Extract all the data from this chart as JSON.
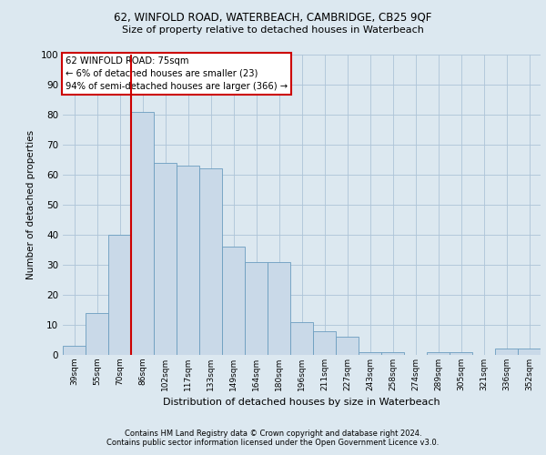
{
  "title1": "62, WINFOLD ROAD, WATERBEACH, CAMBRIDGE, CB25 9QF",
  "title2": "Size of property relative to detached houses in Waterbeach",
  "xlabel": "Distribution of detached houses by size in Waterbeach",
  "ylabel": "Number of detached properties",
  "categories": [
    "39sqm",
    "55sqm",
    "70sqm",
    "86sqm",
    "102sqm",
    "117sqm",
    "133sqm",
    "149sqm",
    "164sqm",
    "180sqm",
    "196sqm",
    "211sqm",
    "227sqm",
    "243sqm",
    "258sqm",
    "274sqm",
    "289sqm",
    "305sqm",
    "321sqm",
    "336sqm",
    "352sqm"
  ],
  "values": [
    3,
    14,
    40,
    81,
    64,
    63,
    62,
    36,
    31,
    31,
    11,
    8,
    6,
    1,
    1,
    0,
    1,
    1,
    0,
    2,
    2
  ],
  "bar_color": "#c9d9e8",
  "bar_edge_color": "#6a9dbf",
  "grid_color": "#adc4d8",
  "background_color": "#dce8f0",
  "fig_background_color": "#dce8f0",
  "vline_x": 2.5,
  "vline_color": "#cc0000",
  "annotation_box": {
    "text_line1": "62 WINFOLD ROAD: 75sqm",
    "text_line2": "← 6% of detached houses are smaller (23)",
    "text_line3": "94% of semi-detached houses are larger (366) →",
    "box_color": "white",
    "box_edge_color": "#cc0000"
  },
  "footer1": "Contains HM Land Registry data © Crown copyright and database right 2024.",
  "footer2": "Contains public sector information licensed under the Open Government Licence v3.0.",
  "ylim": [
    0,
    100
  ],
  "yticks": [
    0,
    10,
    20,
    30,
    40,
    50,
    60,
    70,
    80,
    90,
    100
  ]
}
